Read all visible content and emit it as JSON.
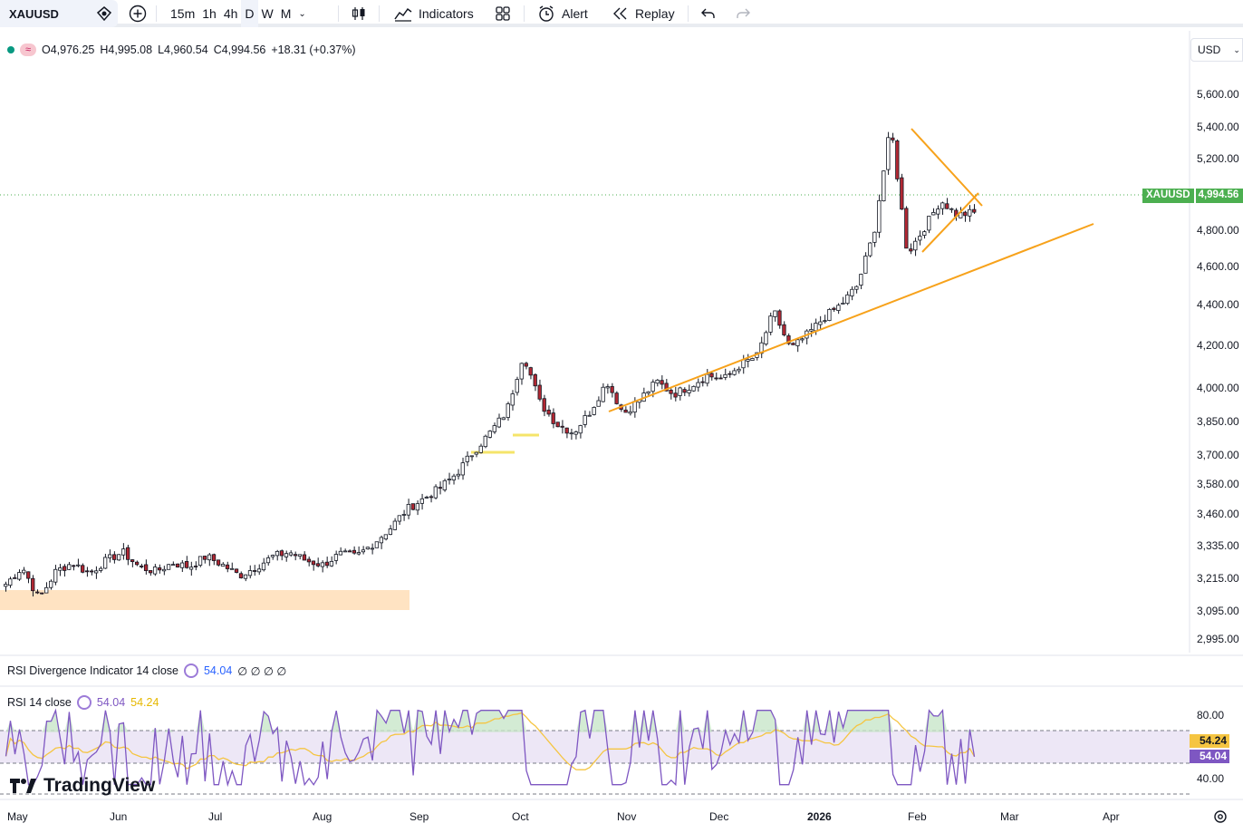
{
  "toolbar": {
    "symbol": "XAUUSD",
    "timeframes": [
      "15m",
      "1h",
      "4h",
      "D",
      "W",
      "M"
    ],
    "active_timeframe": "D",
    "indicators_label": "Indicators",
    "alert_label": "Alert",
    "replay_label": "Replay"
  },
  "legend": {
    "open": "O4,976.25",
    "high": "H4,995.08",
    "low": "L4,960.54",
    "close": "C4,994.56",
    "change": "+18.31 (+0.37%)"
  },
  "currency": "USD",
  "price_axis": [
    "5,600.00",
    "5,400.00",
    "5,200.00",
    "4,800.00",
    "4,600.00",
    "4,400.00",
    "4,200.00",
    "4,000.00",
    "3,850.00",
    "3,700.00",
    "3,580.00",
    "3,460.00",
    "3,335.00",
    "3,215.00",
    "3,095.00",
    "2,995.00"
  ],
  "current_price": {
    "symbol": "XAUUSD",
    "value": "4,994.56"
  },
  "rsi_div": {
    "label": "RSI Divergence Indicator 14 close",
    "value": "54.04",
    "extras": "∅ ∅ ∅ ∅"
  },
  "rsi": {
    "label": "RSI 14 close",
    "value": "54.04",
    "ma": "54.24",
    "axis": [
      "80.00",
      "40.00"
    ]
  },
  "months": [
    "May",
    "Jun",
    "Jul",
    "Aug",
    "Sep",
    "Oct",
    "Nov",
    "Dec",
    "2026",
    "Feb",
    "Mar",
    "Apr"
  ],
  "brand": "TradingView",
  "colors": {
    "up": "#089981",
    "down": "#b22833",
    "trend": "#f7a21b",
    "rsi": "#7e57c2",
    "rsi_ma": "#f5c542"
  },
  "chart_data": {
    "type": "candlestick",
    "symbol": "XAUUSD",
    "interval": "D",
    "close_path": [
      3250,
      3330,
      3180,
      3310,
      3350,
      3300,
      3360,
      3400,
      3330,
      3310,
      3350,
      3330,
      3380,
      3340,
      3290,
      3330,
      3380,
      3400,
      3360,
      3340,
      3390,
      3380,
      3440,
      3510,
      3600,
      3650,
      3700,
      3770,
      3870,
      3960,
      4060,
      4330,
      4100,
      4000,
      3960,
      4060,
      4200,
      4050,
      4120,
      4200,
      4140,
      4180,
      4230,
      4210,
      4280,
      4320,
      4530,
      4350,
      4420,
      4500,
      4560,
      4650,
      4900,
      5400,
      4800,
      4920,
      5050,
      4980,
      4994.56
    ],
    "ylim": [
      2950,
      5650
    ]
  }
}
